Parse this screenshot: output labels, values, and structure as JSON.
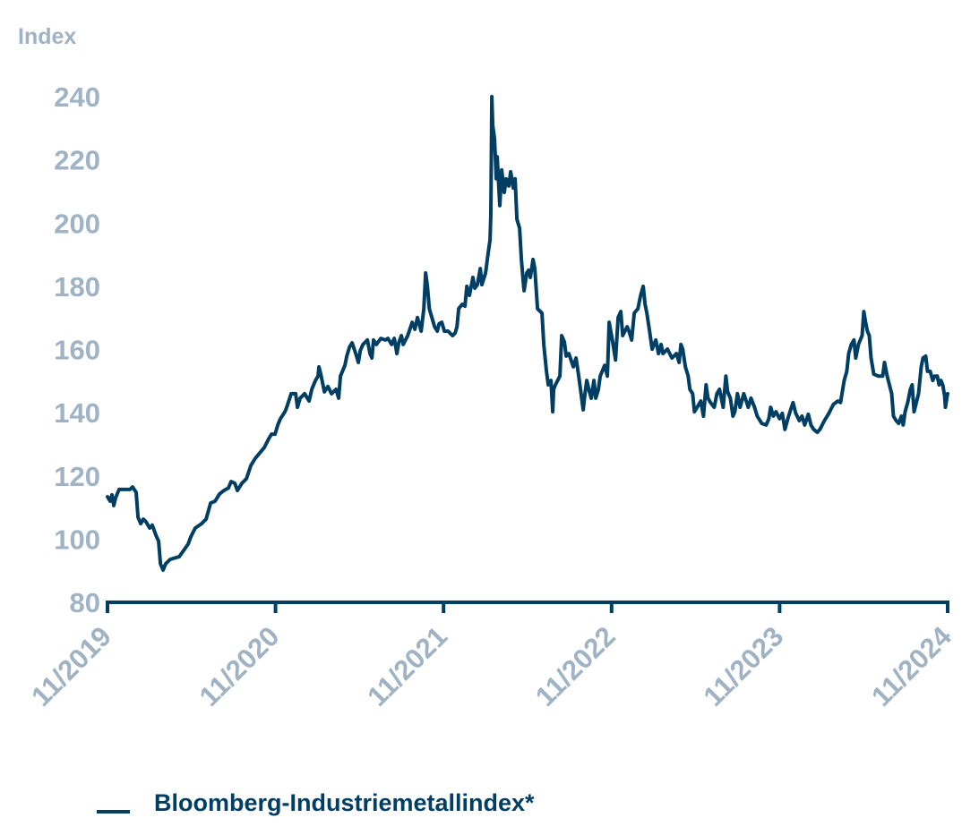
{
  "chart_data": {
    "type": "line",
    "title": "",
    "ylabel": "Index",
    "xlabel": "",
    "x_unit": "months since 11/2019",
    "ylim": [
      80,
      240
    ],
    "xlim": [
      0,
      60
    ],
    "yticks": [
      80,
      100,
      120,
      140,
      160,
      180,
      200,
      220,
      240
    ],
    "yticks_labels": [
      "80",
      "100",
      "120",
      "140",
      "160",
      "180",
      "200",
      "220",
      "240"
    ],
    "xticks": [
      0,
      12,
      24,
      36,
      48,
      60
    ],
    "xtick_labels": [
      "11/2019",
      "11/2020",
      "11/2021",
      "11/2022",
      "11/2023",
      "11/2024"
    ],
    "grid": false,
    "legend_position": "bottom-left",
    "colors": {
      "line": "#003f63",
      "axis": "#003f63",
      "tick_text": "#9fb3c4"
    },
    "series": [
      {
        "name": "Bloomberg-Industriemetallindex*",
        "points": [
          [
            0,
            113.4
          ],
          [
            0.19,
            112
          ],
          [
            0.32,
            114
          ],
          [
            0.45,
            110.6
          ],
          [
            0.58,
            113.1
          ],
          [
            0.83,
            115.7
          ],
          [
            1.6,
            115.7
          ],
          [
            1.79,
            116.5
          ],
          [
            2.05,
            114.8
          ],
          [
            2.18,
            106.9
          ],
          [
            2.37,
            104.9
          ],
          [
            2.56,
            106.3
          ],
          [
            2.75,
            105.5
          ],
          [
            3.01,
            103.5
          ],
          [
            3.2,
            104.4
          ],
          [
            3.46,
            101.2
          ],
          [
            3.65,
            99.3
          ],
          [
            3.78,
            92.2
          ],
          [
            3.97,
            90.2
          ],
          [
            4.16,
            92.2
          ],
          [
            4.48,
            93.6
          ],
          [
            5.12,
            94.4
          ],
          [
            5.44,
            96.4
          ],
          [
            5.76,
            98.4
          ],
          [
            5.95,
            100.7
          ],
          [
            6.27,
            103.5
          ],
          [
            6.72,
            104.9
          ],
          [
            7.04,
            106.3
          ],
          [
            7.36,
            111.4
          ],
          [
            7.68,
            112
          ],
          [
            8.0,
            114.3
          ],
          [
            8.32,
            115.4
          ],
          [
            8.64,
            116.2
          ],
          [
            8.83,
            118.2
          ],
          [
            9.09,
            117.7
          ],
          [
            9.28,
            115.4
          ],
          [
            9.6,
            117.7
          ],
          [
            9.92,
            119.1
          ],
          [
            10.24,
            123.3
          ],
          [
            10.56,
            125.6
          ],
          [
            10.88,
            127.3
          ],
          [
            11.2,
            129
          ],
          [
            11.52,
            131.8
          ],
          [
            11.71,
            133.2
          ],
          [
            11.97,
            133.2
          ],
          [
            12.16,
            136.1
          ],
          [
            12.35,
            138.1
          ],
          [
            12.67,
            140.3
          ],
          [
            12.8,
            141.7
          ],
          [
            13.12,
            146
          ],
          [
            13.44,
            146
          ],
          [
            13.57,
            141.7
          ],
          [
            13.76,
            144.6
          ],
          [
            14.08,
            146
          ],
          [
            14.4,
            143.7
          ],
          [
            14.59,
            147.4
          ],
          [
            14.85,
            150.2
          ],
          [
            15.04,
            151.6
          ],
          [
            15.1,
            154.5
          ],
          [
            15.23,
            152.2
          ],
          [
            15.49,
            146.6
          ],
          [
            15.74,
            148.3
          ],
          [
            16.0,
            146
          ],
          [
            16.32,
            147.4
          ],
          [
            16.51,
            144.6
          ],
          [
            16.64,
            151.6
          ],
          [
            16.96,
            155
          ],
          [
            17.09,
            157.9
          ],
          [
            17.28,
            160.7
          ],
          [
            17.47,
            162.1
          ],
          [
            17.73,
            158.7
          ],
          [
            17.92,
            155.9
          ],
          [
            18.05,
            159.6
          ],
          [
            18.24,
            161.6
          ],
          [
            18.56,
            163
          ],
          [
            18.75,
            158.7
          ],
          [
            18.88,
            157.3
          ],
          [
            19.0,
            163
          ],
          [
            19.2,
            161.6
          ],
          [
            19.52,
            163.5
          ],
          [
            19.84,
            163
          ],
          [
            20.03,
            163.5
          ],
          [
            20.29,
            161.6
          ],
          [
            20.48,
            163.5
          ],
          [
            20.67,
            158.7
          ],
          [
            20.8,
            162.1
          ],
          [
            20.99,
            164.4
          ],
          [
            21.12,
            161.6
          ],
          [
            21.44,
            164.4
          ],
          [
            21.76,
            168.6
          ],
          [
            21.95,
            166.4
          ],
          [
            22.14,
            170.1
          ],
          [
            22.4,
            165.8
          ],
          [
            22.59,
            172.9
          ],
          [
            22.72,
            184.2
          ],
          [
            22.85,
            180
          ],
          [
            22.98,
            172.9
          ],
          [
            23.17,
            170.1
          ],
          [
            23.36,
            167.2
          ],
          [
            23.55,
            165.8
          ],
          [
            23.68,
            168.1
          ],
          [
            23.87,
            168.6
          ],
          [
            24.06,
            165.8
          ],
          [
            24.32,
            165.8
          ],
          [
            24.64,
            164.4
          ],
          [
            24.83,
            165.2
          ],
          [
            24.96,
            167.2
          ],
          [
            25.08,
            172.9
          ],
          [
            25.34,
            174.3
          ],
          [
            25.53,
            173.7
          ],
          [
            25.66,
            180
          ],
          [
            25.85,
            177.1
          ],
          [
            26.1,
            182.8
          ],
          [
            26.23,
            179.4
          ],
          [
            26.42,
            180.5
          ],
          [
            26.62,
            185.6
          ],
          [
            26.74,
            180.5
          ],
          [
            27.0,
            184.2
          ],
          [
            27.19,
            190.7
          ],
          [
            27.32,
            194.7
          ],
          [
            27.38,
            202.6
          ],
          [
            27.45,
            240
          ],
          [
            27.51,
            230.9
          ],
          [
            27.64,
            226.7
          ],
          [
            27.77,
            214
          ],
          [
            27.83,
            221
          ],
          [
            28.02,
            205.5
          ],
          [
            28.15,
            216.8
          ],
          [
            28.34,
            209.7
          ],
          [
            28.47,
            214
          ],
          [
            28.66,
            211.7
          ],
          [
            28.79,
            216.2
          ],
          [
            28.98,
            211.1
          ],
          [
            29.11,
            214
          ],
          [
            29.24,
            201.2
          ],
          [
            29.43,
            198.4
          ],
          [
            29.56,
            188.5
          ],
          [
            29.69,
            181.4
          ],
          [
            29.75,
            178.6
          ],
          [
            29.94,
            184.2
          ],
          [
            30.07,
            185.1
          ],
          [
            30.2,
            182.8
          ],
          [
            30.39,
            188.5
          ],
          [
            30.52,
            185.6
          ],
          [
            30.71,
            172.9
          ],
          [
            31.03,
            171.5
          ],
          [
            31.16,
            161.6
          ],
          [
            31.35,
            153.1
          ],
          [
            31.48,
            148.8
          ],
          [
            31.67,
            150.2
          ],
          [
            31.8,
            140.3
          ],
          [
            31.86,
            147.4
          ],
          [
            31.99,
            148.8
          ],
          [
            32.31,
            151.6
          ],
          [
            32.44,
            164.4
          ],
          [
            32.63,
            162.4
          ],
          [
            32.76,
            157.9
          ],
          [
            32.95,
            158.7
          ],
          [
            33.27,
            154.5
          ],
          [
            33.46,
            157.3
          ],
          [
            33.65,
            151.6
          ],
          [
            33.78,
            147.4
          ],
          [
            33.97,
            140.9
          ],
          [
            34.1,
            146
          ],
          [
            34.23,
            150.2
          ],
          [
            34.42,
            146.6
          ],
          [
            34.55,
            144.6
          ],
          [
            34.74,
            150.2
          ],
          [
            34.87,
            144.6
          ],
          [
            35.06,
            147.4
          ],
          [
            35.19,
            151.6
          ],
          [
            35.51,
            155
          ],
          [
            35.7,
            151.6
          ],
          [
            35.83,
            168.6
          ],
          [
            36.09,
            162.1
          ],
          [
            36.28,
            156.7
          ],
          [
            36.47,
            170.1
          ],
          [
            36.66,
            172
          ],
          [
            36.79,
            164.4
          ],
          [
            37.11,
            167.2
          ],
          [
            37.24,
            165.8
          ],
          [
            37.43,
            163
          ],
          [
            37.62,
            171.5
          ],
          [
            37.88,
            172.9
          ],
          [
            38.07,
            177.1
          ],
          [
            38.26,
            180
          ],
          [
            38.39,
            174.3
          ],
          [
            38.52,
            171.5
          ],
          [
            38.71,
            165.8
          ],
          [
            38.9,
            160.1
          ],
          [
            39.16,
            163
          ],
          [
            39.35,
            158.7
          ],
          [
            39.54,
            161.6
          ],
          [
            39.67,
            158.7
          ],
          [
            39.99,
            160.1
          ],
          [
            40.31,
            157.3
          ],
          [
            40.63,
            158.7
          ],
          [
            40.82,
            155.9
          ],
          [
            40.95,
            161.6
          ],
          [
            41.08,
            160.1
          ],
          [
            41.27,
            154.5
          ],
          [
            41.47,
            151.6
          ],
          [
            41.59,
            147.4
          ],
          [
            41.79,
            146
          ],
          [
            41.92,
            140.3
          ],
          [
            42.11,
            141.7
          ],
          [
            42.37,
            143.7
          ],
          [
            42.56,
            138.9
          ],
          [
            42.75,
            148.8
          ],
          [
            42.88,
            144.6
          ],
          [
            43.07,
            143.2
          ],
          [
            43.33,
            141.7
          ],
          [
            43.52,
            146
          ],
          [
            43.71,
            147.4
          ],
          [
            43.97,
            141.7
          ],
          [
            44.16,
            151.6
          ],
          [
            44.29,
            146.6
          ],
          [
            44.48,
            144.6
          ],
          [
            44.67,
            138.9
          ],
          [
            44.8,
            140.3
          ],
          [
            44.99,
            146
          ],
          [
            45.18,
            141.7
          ],
          [
            45.44,
            146
          ],
          [
            45.76,
            141.7
          ],
          [
            45.95,
            144.6
          ],
          [
            46.21,
            141.7
          ],
          [
            46.4,
            138.9
          ],
          [
            46.72,
            136.6
          ],
          [
            47.04,
            136.1
          ],
          [
            47.23,
            138.1
          ],
          [
            47.36,
            141.7
          ],
          [
            47.55,
            138.9
          ],
          [
            47.74,
            140.3
          ],
          [
            48.0,
            138.1
          ],
          [
            48.19,
            139.8
          ],
          [
            48.38,
            134.7
          ],
          [
            48.64,
            138.9
          ],
          [
            48.96,
            143.2
          ],
          [
            49.15,
            139.8
          ],
          [
            49.41,
            137.5
          ],
          [
            49.6,
            138.9
          ],
          [
            49.79,
            136.1
          ],
          [
            50.05,
            139.5
          ],
          [
            50.24,
            136.1
          ],
          [
            50.43,
            134.7
          ],
          [
            50.69,
            133.8
          ],
          [
            50.88,
            134.7
          ],
          [
            51.2,
            137.5
          ],
          [
            51.52,
            139.8
          ],
          [
            51.84,
            142.6
          ],
          [
            52.16,
            143.7
          ],
          [
            52.35,
            143.2
          ],
          [
            52.61,
            150.2
          ],
          [
            52.8,
            153.1
          ],
          [
            52.93,
            158.7
          ],
          [
            53.12,
            161.6
          ],
          [
            53.31,
            163
          ],
          [
            53.44,
            157.3
          ],
          [
            53.63,
            161.6
          ],
          [
            53.89,
            164.4
          ],
          [
            54.01,
            172
          ],
          [
            54.14,
            168.6
          ],
          [
            54.27,
            165.8
          ],
          [
            54.4,
            164.4
          ],
          [
            54.53,
            157.3
          ],
          [
            54.72,
            152.2
          ],
          [
            55.04,
            151.6
          ],
          [
            55.36,
            151.6
          ],
          [
            55.49,
            155.9
          ],
          [
            55.68,
            151.6
          ],
          [
            56.0,
            146
          ],
          [
            56.13,
            138.9
          ],
          [
            56.32,
            137.5
          ],
          [
            56.51,
            136.6
          ],
          [
            56.7,
            138.9
          ],
          [
            56.83,
            136.1
          ],
          [
            56.96,
            140.3
          ],
          [
            57.15,
            143.2
          ],
          [
            57.34,
            147.4
          ],
          [
            57.47,
            148.8
          ],
          [
            57.6,
            140.3
          ],
          [
            57.92,
            146
          ],
          [
            58.11,
            154.5
          ],
          [
            58.24,
            157.3
          ],
          [
            58.43,
            157.9
          ],
          [
            58.56,
            153.1
          ],
          [
            58.75,
            153.1
          ],
          [
            58.94,
            150.2
          ],
          [
            59.07,
            151.6
          ],
          [
            59.26,
            151.6
          ],
          [
            59.39,
            148.8
          ],
          [
            59.52,
            150.2
          ],
          [
            59.65,
            148.8
          ],
          [
            59.78,
            145.4
          ],
          [
            59.84,
            141.7
          ],
          [
            59.97,
            145.4
          ],
          [
            60,
            146
          ]
        ]
      }
    ]
  }
}
